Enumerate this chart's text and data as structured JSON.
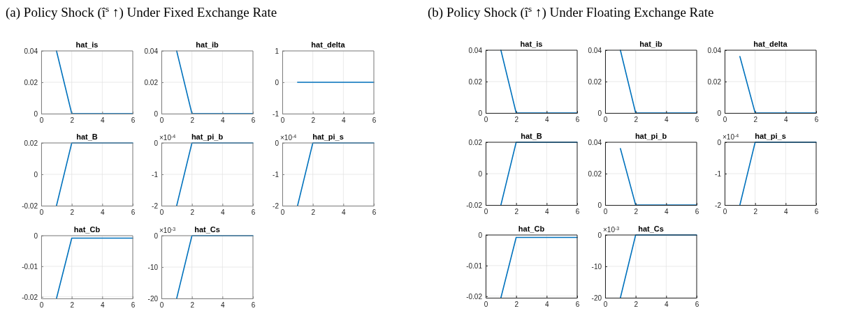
{
  "chart_data": [
    {
      "type": "line",
      "title": "hat_is",
      "subtitle": "(a) Policy Shock (î$^{s}$ ↑) Under Fixed Exchange Rate",
      "x": [
        1,
        2,
        3,
        4,
        5,
        6
      ],
      "series": [
        {
          "color": "#0072bd",
          "values": [
            0.04,
            0,
            0,
            0,
            0,
            0
          ]
        }
      ],
      "xlim": [
        0,
        6
      ],
      "xticks": [
        0,
        2,
        4,
        6
      ],
      "ylim": [
        0,
        0.04
      ],
      "yticks": [
        0,
        0.02,
        0.04
      ],
      "grid": true
    },
    {
      "type": "line",
      "title": "hat_ib",
      "x": [
        1,
        2,
        3,
        4,
        5,
        6
      ],
      "series": [
        {
          "color": "#0072bd",
          "values": [
            0.04,
            0,
            0,
            0,
            0,
            0
          ]
        }
      ],
      "xlim": [
        0,
        6
      ],
      "xticks": [
        0,
        2,
        4,
        6
      ],
      "ylim": [
        0,
        0.04
      ],
      "yticks": [
        0,
        0.02,
        0.04
      ],
      "grid": true
    },
    {
      "type": "line",
      "title": "hat_delta",
      "x": [
        1,
        2,
        3,
        4,
        5,
        6
      ],
      "series": [
        {
          "color": "#0072bd",
          "values": [
            0,
            0,
            0,
            0,
            0,
            0
          ]
        }
      ],
      "xlim": [
        0,
        6
      ],
      "xticks": [
        0,
        2,
        4,
        6
      ],
      "ylim": [
        -1,
        1
      ],
      "yticks": [
        -1,
        0,
        1
      ],
      "grid": true
    },
    {
      "type": "line",
      "title": "hat_B",
      "x": [
        1,
        2,
        3,
        4,
        5,
        6
      ],
      "series": [
        {
          "color": "#0072bd",
          "values": [
            -0.02,
            0.02,
            0.02,
            0.02,
            0.02,
            0.02
          ]
        }
      ],
      "xlim": [
        0,
        6
      ],
      "xticks": [
        0,
        2,
        4,
        6
      ],
      "ylim": [
        -0.02,
        0.02
      ],
      "yticks": [
        -0.02,
        0,
        0.02
      ],
      "grid": true
    },
    {
      "type": "line",
      "title": "hat_pi_b",
      "annotations": [
        "×10$^{-4}$"
      ],
      "x": [
        1,
        2,
        3,
        4,
        5,
        6
      ],
      "series": [
        {
          "color": "#0072bd",
          "values": [
            -2,
            0,
            0,
            0,
            0,
            0
          ]
        }
      ],
      "xlim": [
        0,
        6
      ],
      "xticks": [
        0,
        2,
        4,
        6
      ],
      "ylim": [
        -2,
        0
      ],
      "yticks": [
        -2,
        -1,
        0
      ],
      "grid": true
    },
    {
      "type": "line",
      "title": "hat_pi_s",
      "annotations": [
        "×10$^{-4}$"
      ],
      "x": [
        1,
        2,
        3,
        4,
        5,
        6
      ],
      "series": [
        {
          "color": "#0072bd",
          "values": [
            -2,
            0,
            0,
            0,
            0,
            0
          ]
        }
      ],
      "xlim": [
        0,
        6
      ],
      "xticks": [
        0,
        2,
        4,
        6
      ],
      "ylim": [
        -2,
        0
      ],
      "yticks": [
        -2,
        -1,
        0
      ],
      "grid": true
    },
    {
      "type": "line",
      "title": "hat_Cb",
      "x": [
        1,
        2,
        3,
        4,
        5,
        6
      ],
      "series": [
        {
          "color": "#0072bd",
          "values": [
            -0.0205,
            -0.0008,
            -0.0008,
            -0.0008,
            -0.0008,
            -0.0008
          ]
        }
      ],
      "xlim": [
        0,
        6
      ],
      "xticks": [
        0,
        2,
        4,
        6
      ],
      "ylim": [
        -0.0205,
        0
      ],
      "yticks": [
        -0.02,
        -0.01,
        0
      ],
      "grid": true
    },
    {
      "type": "line",
      "title": "hat_Cs",
      "annotations": [
        "×10$^{-3}$"
      ],
      "x": [
        1,
        2,
        3,
        4,
        5,
        6
      ],
      "series": [
        {
          "color": "#0072bd",
          "values": [
            -20,
            0,
            0,
            0,
            0,
            0
          ]
        }
      ],
      "xlim": [
        0,
        6
      ],
      "xticks": [
        0,
        2,
        4,
        6
      ],
      "ylim": [
        -20,
        0
      ],
      "yticks": [
        -20,
        -10,
        0
      ],
      "grid": true
    },
    {
      "type": "line",
      "title": "hat_is",
      "subtitle": "(b) Policy Shock (î$^{s}$ ↑) Under Floating Exchange Rate",
      "x": [
        1,
        2,
        3,
        4,
        5,
        6
      ],
      "series": [
        {
          "color": "#0072bd",
          "values": [
            0.04,
            0,
            0,
            0,
            0,
            0
          ]
        }
      ],
      "xlim": [
        0,
        6
      ],
      "xticks": [
        0,
        2,
        4,
        6
      ],
      "ylim": [
        0,
        0.04
      ],
      "yticks": [
        0,
        0.02,
        0.04
      ],
      "grid": true
    },
    {
      "type": "line",
      "title": "hat_ib",
      "x": [
        1,
        2,
        3,
        4,
        5,
        6
      ],
      "series": [
        {
          "color": "#0072bd",
          "values": [
            0.04,
            0,
            0,
            0,
            0,
            0
          ]
        }
      ],
      "xlim": [
        0,
        6
      ],
      "xticks": [
        0,
        2,
        4,
        6
      ],
      "ylim": [
        0,
        0.04
      ],
      "yticks": [
        0,
        0.02,
        0.04
      ],
      "grid": true
    },
    {
      "type": "line",
      "title": "hat_delta",
      "x": [
        1,
        2,
        3,
        4,
        5,
        6
      ],
      "series": [
        {
          "color": "#0072bd",
          "values": [
            0.036,
            0,
            0,
            0,
            0,
            0
          ]
        }
      ],
      "xlim": [
        0,
        6
      ],
      "xticks": [
        0,
        2,
        4,
        6
      ],
      "ylim": [
        0,
        0.04
      ],
      "yticks": [
        0,
        0.02,
        0.04
      ],
      "grid": true
    },
    {
      "type": "line",
      "title": "hat_B",
      "x": [
        1,
        2,
        3,
        4,
        5,
        6
      ],
      "series": [
        {
          "color": "#0072bd",
          "values": [
            -0.02,
            0.02,
            0.02,
            0.02,
            0.02,
            0.02
          ]
        }
      ],
      "xlim": [
        0,
        6
      ],
      "xticks": [
        0,
        2,
        4,
        6
      ],
      "ylim": [
        -0.02,
        0.02
      ],
      "yticks": [
        -0.02,
        0,
        0.02
      ],
      "grid": true
    },
    {
      "type": "line",
      "title": "hat_pi_b",
      "x": [
        1,
        2,
        3,
        4,
        5,
        6
      ],
      "series": [
        {
          "color": "#0072bd",
          "values": [
            0.036,
            0,
            0,
            0,
            0,
            0
          ]
        }
      ],
      "xlim": [
        0,
        6
      ],
      "xticks": [
        0,
        2,
        4,
        6
      ],
      "ylim": [
        0,
        0.04
      ],
      "yticks": [
        0,
        0.02,
        0.04
      ],
      "grid": true
    },
    {
      "type": "line",
      "title": "hat_pi_s",
      "annotations": [
        "×10$^{-4}$"
      ],
      "x": [
        1,
        2,
        3,
        4,
        5,
        6
      ],
      "series": [
        {
          "color": "#0072bd",
          "values": [
            -2,
            0,
            0,
            0,
            0,
            0
          ]
        }
      ],
      "xlim": [
        0,
        6
      ],
      "xticks": [
        0,
        2,
        4,
        6
      ],
      "ylim": [
        -2,
        0
      ],
      "yticks": [
        -2,
        -1,
        0
      ],
      "grid": true
    },
    {
      "type": "line",
      "title": "hat_Cb",
      "x": [
        1,
        2,
        3,
        4,
        5,
        6
      ],
      "series": [
        {
          "color": "#0072bd",
          "values": [
            -0.0205,
            -0.0008,
            -0.0008,
            -0.0008,
            -0.0008,
            -0.0008
          ]
        }
      ],
      "xlim": [
        0,
        6
      ],
      "xticks": [
        0,
        2,
        4,
        6
      ],
      "ylim": [
        -0.0205,
        0
      ],
      "yticks": [
        -0.02,
        -0.01,
        0
      ],
      "grid": true
    },
    {
      "type": "line",
      "title": "hat_Cs",
      "annotations": [
        "×10$^{-3}$"
      ],
      "x": [
        1,
        2,
        3,
        4,
        5,
        6
      ],
      "series": [
        {
          "color": "#0072bd",
          "values": [
            -20,
            0,
            0,
            0,
            0,
            0
          ]
        }
      ],
      "xlim": [
        0,
        6
      ],
      "xticks": [
        0,
        2,
        4,
        6
      ],
      "ylim": [
        -20,
        0
      ],
      "yticks": [
        -20,
        -10,
        0
      ],
      "grid": true
    }
  ]
}
